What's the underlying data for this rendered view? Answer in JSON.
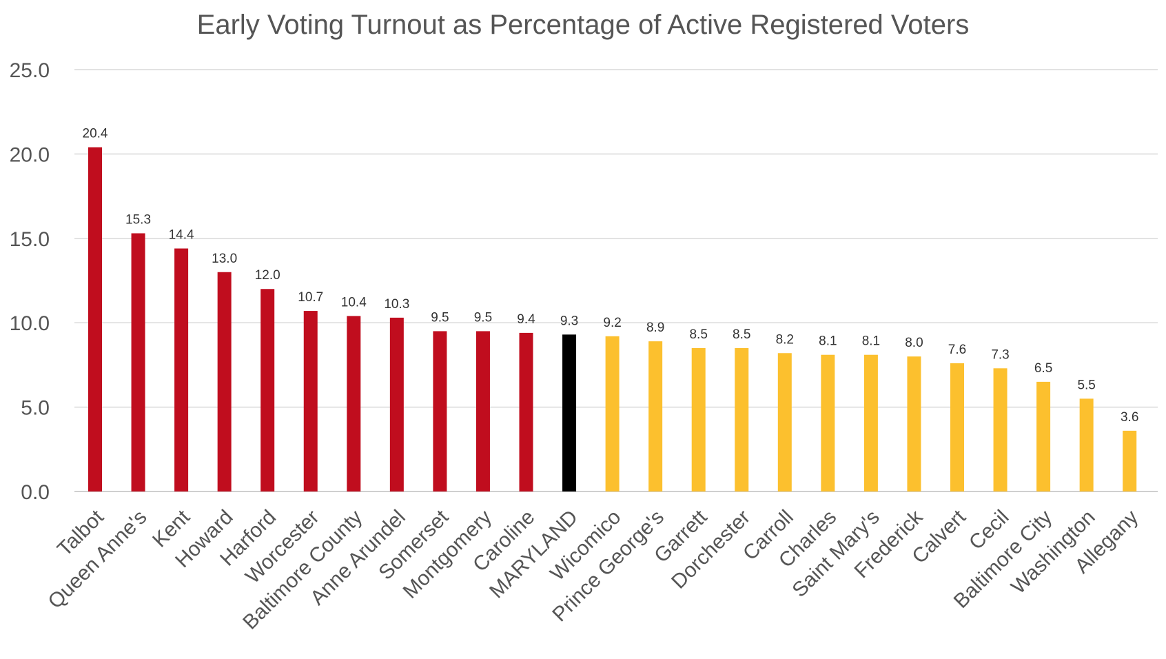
{
  "chart_data": {
    "type": "bar",
    "title": "Early Voting Turnout as Percentage of Active Registered Voters",
    "xlabel": "",
    "ylabel": "",
    "ylim": [
      0,
      25
    ],
    "yticks": [
      "0.0",
      "5.0",
      "10.0",
      "15.0",
      "20.0",
      "25.0"
    ],
    "grid": true,
    "legend": "none",
    "categories": [
      "Talbot",
      "Queen Anne's",
      "Kent",
      "Howard",
      "Harford",
      "Worcester",
      "Baltimore County",
      "Anne Arundel",
      "Somerset",
      "Montgomery",
      "Caroline",
      "MARYLAND",
      "Wicomico",
      "Prince George's",
      "Garrett",
      "Dorchester",
      "Carroll",
      "Charles",
      "Saint Mary's",
      "Frederick",
      "Calvert",
      "Cecil",
      "Baltimore City",
      "Washington",
      "Allegany"
    ],
    "values": [
      20.4,
      15.3,
      14.4,
      13.0,
      12.0,
      10.7,
      10.4,
      10.3,
      9.5,
      9.5,
      9.4,
      9.3,
      9.2,
      8.9,
      8.5,
      8.5,
      8.2,
      8.1,
      8.1,
      8.0,
      7.6,
      7.3,
      6.5,
      5.5,
      3.6
    ],
    "data_labels": [
      "20.4",
      "15.3",
      "14.4",
      "13.0",
      "12.0",
      "10.7",
      "10.4",
      "10.3",
      "9.5",
      "9.5",
      "9.4",
      "9.3",
      "9.2",
      "8.9",
      "8.5",
      "8.5",
      "8.2",
      "8.1",
      "8.1",
      "8.0",
      "7.6",
      "7.3",
      "6.5",
      "5.5",
      "3.6"
    ],
    "bar_colors": [
      "#c00d1e",
      "#c00d1e",
      "#c00d1e",
      "#c00d1e",
      "#c00d1e",
      "#c00d1e",
      "#c00d1e",
      "#c00d1e",
      "#c00d1e",
      "#c00d1e",
      "#c00d1e",
      "#000000",
      "#fcc02e",
      "#fcc02e",
      "#fcc02e",
      "#fcc02e",
      "#fcc02e",
      "#fcc02e",
      "#fcc02e",
      "#fcc02e",
      "#fcc02e",
      "#fcc02e",
      "#fcc02e",
      "#fcc02e",
      "#fcc02e"
    ]
  }
}
